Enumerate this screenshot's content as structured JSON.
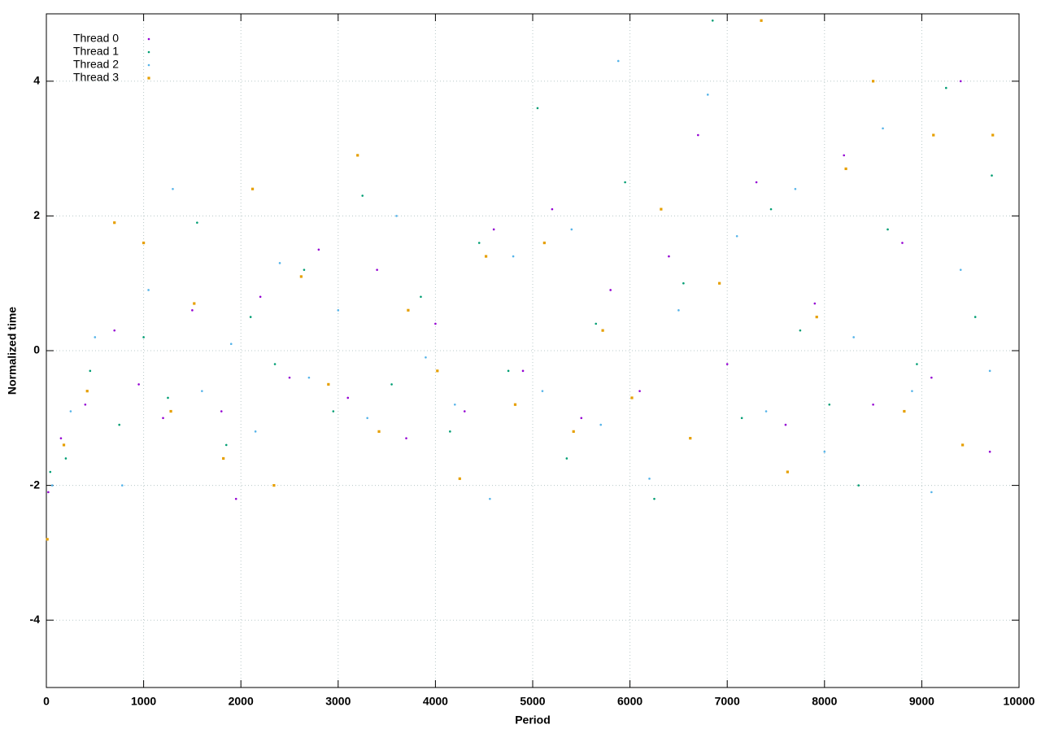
{
  "chart_data": {
    "type": "scatter",
    "x_label": "Period",
    "y_label": "Normalized time",
    "xlim": [
      0,
      10000
    ],
    "ylim": [
      -5,
      5
    ],
    "xticks": [
      0,
      1000,
      2000,
      3000,
      4000,
      5000,
      6000,
      7000,
      8000,
      9000,
      10000
    ],
    "yticks": [
      -4,
      -2,
      0,
      2,
      4
    ],
    "grid": true,
    "legend": "top-left",
    "series": [
      {
        "name": "Thread 0",
        "color": "#9400d3",
        "marker": "dot",
        "x": [
          20,
          150,
          400,
          700,
          950,
          1200,
          1500,
          1800,
          1950,
          2200,
          2500,
          2800,
          3100,
          3400,
          3700,
          4000,
          4300,
          4600,
          4900,
          5200,
          5500,
          5800,
          6100,
          6400,
          6700,
          7000,
          7300,
          7600,
          7900,
          8200,
          8500,
          8800,
          9100,
          9400,
          9700
        ],
        "values": [
          -2.1,
          -1.3,
          -0.8,
          0.3,
          -0.5,
          -1.0,
          0.6,
          -0.9,
          -2.2,
          0.8,
          -0.4,
          1.5,
          -0.7,
          1.2,
          -1.3,
          0.4,
          -0.9,
          1.8,
          -0.3,
          2.1,
          -1.0,
          0.9,
          -0.6,
          1.4,
          3.2,
          -0.2,
          2.5,
          -1.1,
          0.7,
          2.9,
          -0.8,
          1.6,
          -0.4,
          4.0,
          -1.5
        ]
      },
      {
        "name": "Thread 1",
        "color": "#009e73",
        "marker": "dot",
        "x": [
          40,
          200,
          450,
          750,
          1000,
          1250,
          1550,
          1850,
          2100,
          2350,
          2650,
          2950,
          3250,
          3550,
          3850,
          4150,
          4450,
          4750,
          5050,
          5350,
          5650,
          5950,
          6250,
          6550,
          6850,
          7150,
          7450,
          7750,
          8050,
          8350,
          8650,
          8950,
          9250,
          9550,
          9720
        ],
        "values": [
          -1.8,
          -1.6,
          -0.3,
          -1.1,
          0.2,
          -0.7,
          1.9,
          -1.4,
          0.5,
          -0.2,
          1.2,
          -0.9,
          2.3,
          -0.5,
          0.8,
          -1.2,
          1.6,
          -0.3,
          3.6,
          -1.6,
          0.4,
          2.5,
          -2.2,
          1.0,
          4.9,
          -1.0,
          2.1,
          0.3,
          -0.8,
          -2.0,
          1.8,
          -0.2,
          3.9,
          0.5,
          2.6
        ]
      },
      {
        "name": "Thread 2",
        "color": "#56b4e9",
        "marker": "dot",
        "x": [
          60,
          250,
          500,
          780,
          1050,
          1300,
          1600,
          1900,
          2150,
          2400,
          2700,
          3000,
          3300,
          3600,
          3900,
          4200,
          4560,
          4800,
          5100,
          5400,
          5700,
          5880,
          6200,
          6500,
          6800,
          7100,
          7400,
          7700,
          8000,
          8300,
          8600,
          8900,
          9100,
          9400,
          9700
        ],
        "values": [
          -2.0,
          -0.9,
          0.2,
          -2.0,
          0.9,
          2.4,
          -0.6,
          0.1,
          -1.2,
          1.3,
          -0.4,
          0.6,
          -1.0,
          2.0,
          -0.1,
          -0.8,
          -2.2,
          1.4,
          -0.6,
          1.8,
          -1.1,
          4.3,
          -1.9,
          0.6,
          3.8,
          1.7,
          -0.9,
          2.4,
          -1.5,
          0.2,
          3.3,
          -0.6,
          -2.1,
          1.2,
          -0.3
        ]
      },
      {
        "name": "Thread 3",
        "color": "#e69f00",
        "marker": "square",
        "x": [
          10,
          180,
          420,
          700,
          1000,
          1280,
          1520,
          1820,
          2120,
          2340,
          2620,
          2900,
          3200,
          3420,
          3720,
          4020,
          4250,
          4520,
          4820,
          5120,
          5420,
          5720,
          6020,
          6320,
          6620,
          6920,
          7350,
          7620,
          7920,
          8220,
          8500,
          8820,
          9120,
          9420,
          9730
        ],
        "values": [
          -2.8,
          -1.4,
          -0.6,
          1.9,
          1.6,
          -0.9,
          0.7,
          -1.6,
          2.4,
          -2.0,
          1.1,
          -0.5,
          2.9,
          -1.2,
          0.6,
          -0.3,
          -1.9,
          1.4,
          -0.8,
          1.6,
          -1.2,
          0.3,
          -0.7,
          2.1,
          -1.3,
          1.0,
          4.9,
          -1.8,
          0.5,
          2.7,
          4.0,
          -0.9,
          3.2,
          -1.4,
          3.2
        ]
      }
    ]
  }
}
